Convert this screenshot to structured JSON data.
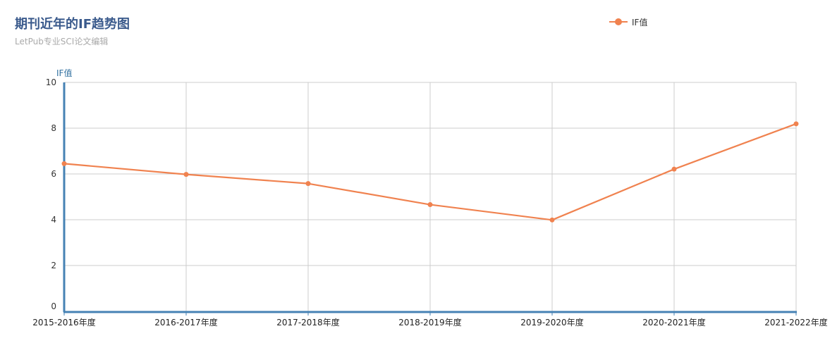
{
  "title": "期刊近年的IF趋势图",
  "subtitle": "LetPub专业SCI论文编辑",
  "colors": {
    "series": "#f0824f",
    "axis": "#4682b4",
    "grid": "#cccccc",
    "title": "#3a5a8c",
    "subtitle": "#aaaaaa",
    "ylabel": "#2f6f9f"
  },
  "chart_data": {
    "type": "line",
    "title": "期刊近年的IF趋势图",
    "subtitle": "LetPub专业SCI论文编辑",
    "xlabel": "",
    "ylabel": "IF值",
    "categories": [
      "2015-2016年度",
      "2016-2017年度",
      "2017-2018年度",
      "2018-2019年度",
      "2019-2020年度",
      "2020-2021年度",
      "2021-2022年度"
    ],
    "series": [
      {
        "name": "IF值",
        "values": [
          6.45,
          5.98,
          5.58,
          4.66,
          3.99,
          6.21,
          8.19
        ]
      }
    ],
    "ylim": [
      0,
      10
    ],
    "yticks": [
      0,
      2,
      4,
      6,
      8,
      10
    ],
    "grid": true,
    "legend": "top-right"
  }
}
